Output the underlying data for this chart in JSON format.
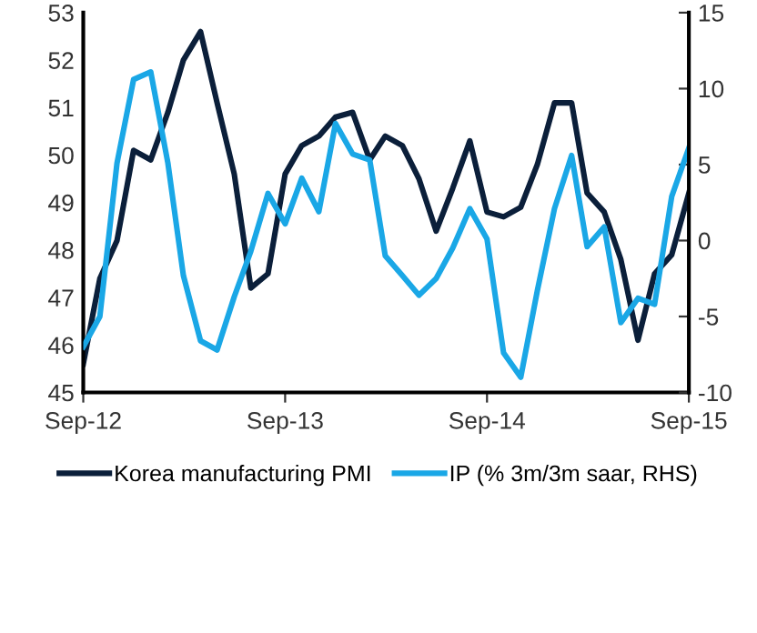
{
  "chart_data": {
    "type": "line",
    "x": [
      "2012-09",
      "2012-10",
      "2012-11",
      "2012-12",
      "2013-01",
      "2013-02",
      "2013-03",
      "2013-04",
      "2013-05",
      "2013-06",
      "2013-07",
      "2013-08",
      "2013-09",
      "2013-10",
      "2013-11",
      "2013-12",
      "2014-01",
      "2014-02",
      "2014-03",
      "2014-04",
      "2014-05",
      "2014-06",
      "2014-07",
      "2014-08",
      "2014-09",
      "2014-10",
      "2014-11",
      "2014-12",
      "2015-01",
      "2015-02",
      "2015-03",
      "2015-04",
      "2015-05",
      "2015-06",
      "2015-07",
      "2015-08",
      "2015-09"
    ],
    "series": [
      {
        "name": "Korea manufacturing PMI",
        "color": "#0b1f3a",
        "values": [
          45.6,
          47.4,
          48.2,
          50.1,
          49.9,
          50.9,
          52.0,
          52.6,
          51.1,
          49.6,
          47.2,
          47.5,
          49.6,
          50.2,
          50.4,
          50.8,
          50.9,
          49.9,
          50.4,
          50.2,
          49.5,
          48.4,
          49.3,
          50.3,
          48.8,
          48.7,
          48.9,
          49.8,
          51.1,
          51.1,
          49.2,
          48.8,
          47.8,
          46.1,
          47.5,
          47.9,
          49.2
        ]
      },
      {
        "name": "IP (% 3m/3m saar, RHS)",
        "color": "#1aa7e6",
        "axis": "y2",
        "values": [
          -7.0,
          -5.0,
          5.1,
          10.6,
          11.1,
          5.1,
          -2.3,
          -6.6,
          -7.2,
          -3.7,
          -0.7,
          3.1,
          1.1,
          4.1,
          1.9,
          7.7,
          5.7,
          5.3,
          -1.0,
          -2.3,
          -3.6,
          -2.5,
          -0.5,
          2.1,
          0.1,
          -7.4,
          -9.0,
          -3.3,
          2.1,
          5.6,
          -0.4,
          0.9,
          -5.4,
          -3.8,
          -4.2,
          2.9,
          6.1
        ]
      }
    ],
    "xlim": [
      "2012-09",
      "2015-09"
    ],
    "xticks": [
      {
        "value": "2012-09",
        "label": "Sep-12"
      },
      {
        "value": "2013-09",
        "label": "Sep-13"
      },
      {
        "value": "2014-09",
        "label": "Sep-14"
      },
      {
        "value": "2015-09",
        "label": "Sep-15"
      }
    ],
    "ylim": [
      45,
      53
    ],
    "yticks": [
      45,
      46,
      47,
      48,
      49,
      50,
      51,
      52,
      53
    ],
    "y2lim": [
      -10,
      15
    ],
    "y2ticks": [
      -10,
      -5,
      0,
      5,
      10,
      15
    ],
    "grid": false,
    "legend": "bottom",
    "marker": "none",
    "line_style": "solid"
  }
}
